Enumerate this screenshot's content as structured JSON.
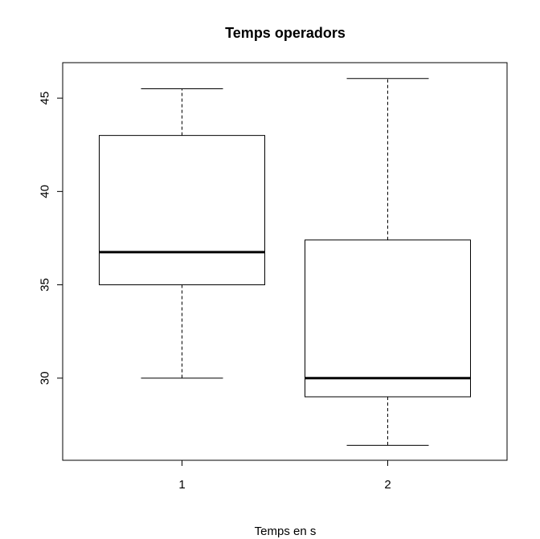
{
  "chart_data": {
    "type": "box",
    "title": "Temps operadors",
    "xlabel": "Temps en s",
    "ylabel": "",
    "categories": [
      "1",
      "2"
    ],
    "boxes": [
      {
        "name": "1",
        "whisker_low": 30.0,
        "q1": 35.0,
        "median": 36.75,
        "q3": 43.0,
        "whisker_high": 45.5
      },
      {
        "name": "2",
        "whisker_low": 26.4,
        "q1": 29.0,
        "median": 30.0,
        "q3": 37.4,
        "whisker_high": 46.05
      }
    ],
    "yticks": [
      30,
      35,
      40,
      45
    ],
    "ylim": [
      25.6,
      46.9
    ],
    "grid": false,
    "legend": "none",
    "colors": {
      "box_fill": "#ffffff",
      "stroke": "#000000",
      "median": "#000000"
    }
  }
}
